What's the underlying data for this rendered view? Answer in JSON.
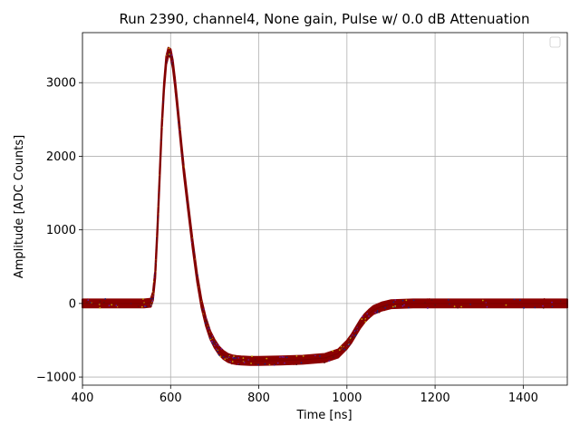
{
  "chart_data": {
    "type": "scatter",
    "title": "Run 2390, channel4, None gain, Pulse w/ 0.0 dB Attenuation",
    "xlabel": "Time [ns]",
    "ylabel": "Amplitude [ADC Counts]",
    "xlim": [
      400,
      1500
    ],
    "ylim": [
      -1110,
      3680
    ],
    "xticks": [
      400,
      600,
      800,
      1000,
      1200,
      1400
    ],
    "yticks": [
      -1000,
      0,
      1000,
      2000,
      3000
    ],
    "xtick_labels": [
      "400",
      "600",
      "800",
      "1000",
      "1200",
      "1400"
    ],
    "ytick_labels": [
      "−1000",
      "0",
      "1000",
      "2000",
      "3000"
    ],
    "grid": true,
    "legend": "top-right (empty)",
    "band_halfwidth": 55,
    "series": [
      {
        "color": "#8b0000",
        "x": [
          400,
          450,
          500,
          540,
          555,
          560,
          565,
          570,
          575,
          580,
          585,
          590,
          595,
          600,
          605,
          610,
          615,
          620,
          625,
          630,
          640,
          650,
          660,
          670,
          680,
          690,
          700,
          710,
          720,
          730,
          740,
          750,
          760,
          780,
          800,
          850,
          900,
          950,
          980,
          1000,
          1010,
          1020,
          1030,
          1040,
          1050,
          1060,
          1080,
          1100,
          1150,
          1200,
          1300,
          1400,
          1500
        ],
        "y": [
          0,
          0,
          0,
          0,
          10,
          100,
          400,
          1000,
          1700,
          2400,
          2950,
          3300,
          3420,
          3400,
          3250,
          3000,
          2700,
          2400,
          2100,
          1800,
          1300,
          800,
          350,
          0,
          -250,
          -430,
          -550,
          -640,
          -700,
          -740,
          -760,
          -770,
          -775,
          -780,
          -780,
          -775,
          -765,
          -740,
          -680,
          -560,
          -480,
          -380,
          -280,
          -200,
          -140,
          -90,
          -40,
          -10,
          0,
          0,
          0,
          0,
          0
        ]
      }
    ]
  }
}
